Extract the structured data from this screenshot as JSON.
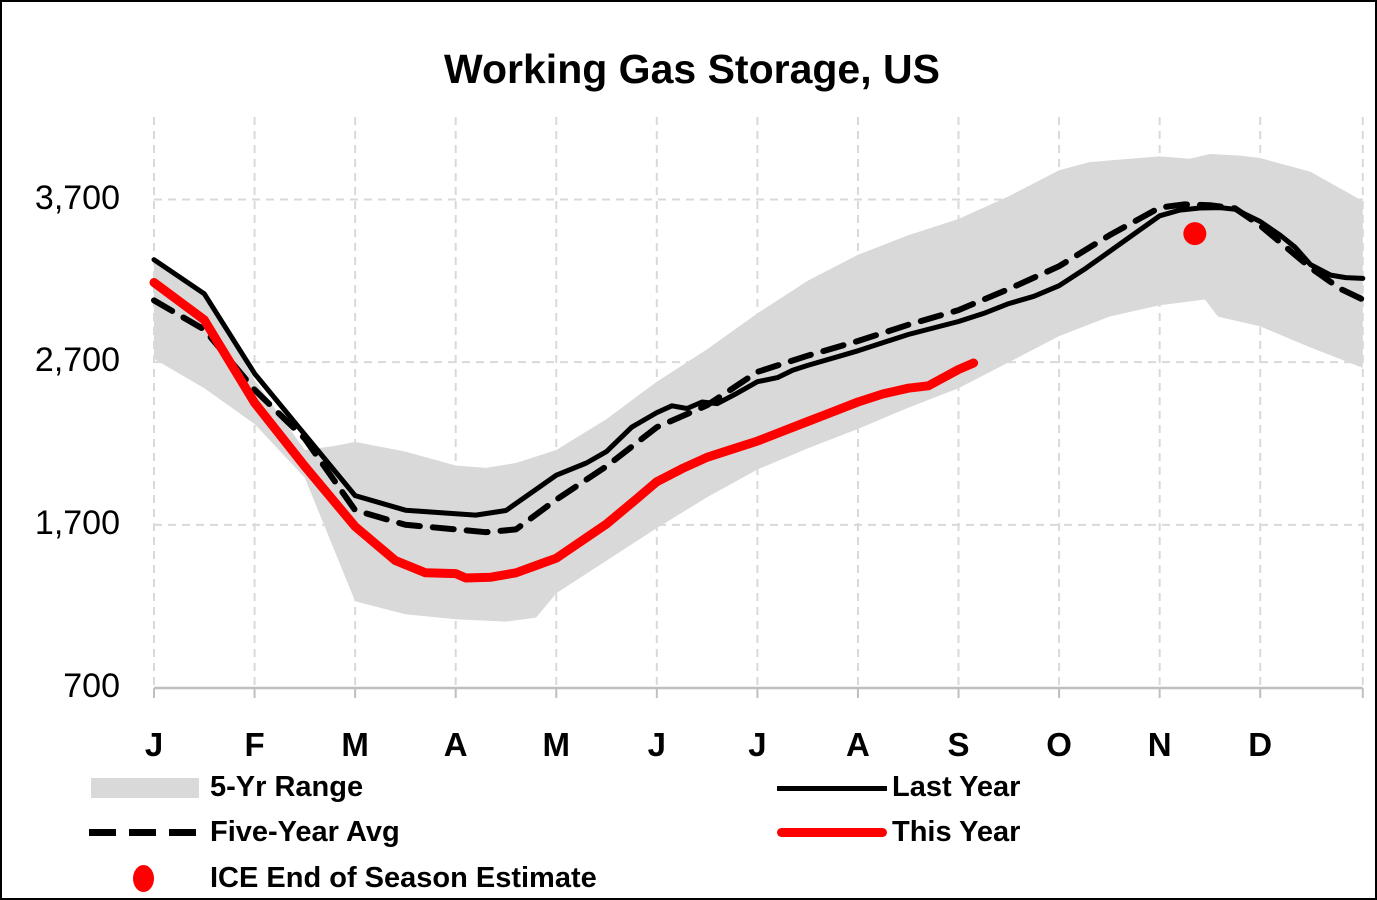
{
  "title": "Working Gas Storage, US",
  "colors": {
    "band": "#D9D9D9",
    "grid": "#D9D9D9",
    "axis": "#BFBFBF",
    "last_year": "#000000",
    "five_year_avg": "#000000",
    "this_year": "#FF0000",
    "ice_dot": "#FF0000",
    "text": "#000000"
  },
  "legend": {
    "items": [
      {
        "label": "5-Yr Range",
        "swatch": "gray-band-swatch"
      },
      {
        "label": "Five-Year Avg",
        "swatch": "black-dashed-swatch"
      },
      {
        "label": "ICE End of Season Estimate",
        "swatch": "red-dot-swatch"
      },
      {
        "label": "Last Year",
        "swatch": "black-line-swatch"
      },
      {
        "label": "This Year",
        "swatch": "red-line-swatch"
      }
    ]
  },
  "chart_data": {
    "type": "line",
    "title": "Working Gas Storage, US",
    "xlabel": "",
    "ylabel": "",
    "grid": true,
    "x_axis": {
      "unit": "months",
      "labels": [
        "J",
        "F",
        "M",
        "A",
        "M",
        "J",
        "J",
        "A",
        "S",
        "O",
        "N",
        "D"
      ],
      "range": [
        0,
        12.02
      ]
    },
    "y_axis": {
      "ticks": [
        {
          "label": "3,700",
          "value": 3700
        },
        {
          "label": "2,700",
          "value": 2700
        },
        {
          "label": "1,700",
          "value": 1700
        },
        {
          "label": "700",
          "value": 700
        }
      ],
      "range": [
        700,
        4050
      ]
    },
    "series": [
      {
        "name": "5-Yr Range",
        "type": "band",
        "color": "#D9D9D9",
        "top": [
          [
            0,
            3340
          ],
          [
            0.5,
            3130
          ],
          [
            1,
            2590
          ],
          [
            1.5,
            2160
          ],
          [
            1.8,
            2185
          ],
          [
            2,
            2210
          ],
          [
            2.5,
            2150
          ],
          [
            3,
            2065
          ],
          [
            3.3,
            2050
          ],
          [
            3.6,
            2080
          ],
          [
            4,
            2160
          ],
          [
            4.5,
            2350
          ],
          [
            5,
            2580
          ],
          [
            5.5,
            2780
          ],
          [
            6,
            3000
          ],
          [
            6.5,
            3200
          ],
          [
            7,
            3360
          ],
          [
            7.5,
            3480
          ],
          [
            8,
            3580
          ],
          [
            8.5,
            3720
          ],
          [
            9,
            3880
          ],
          [
            9.3,
            3930
          ],
          [
            9.6,
            3945
          ],
          [
            10,
            3965
          ],
          [
            10.3,
            3950
          ],
          [
            10.5,
            3980
          ],
          [
            10.8,
            3970
          ],
          [
            11,
            3955
          ],
          [
            11.5,
            3870
          ],
          [
            12.02,
            3690
          ]
        ],
        "bottom": [
          [
            0,
            2720
          ],
          [
            0.5,
            2540
          ],
          [
            1,
            2320
          ],
          [
            1.5,
            1990
          ],
          [
            2,
            1230
          ],
          [
            2.5,
            1150
          ],
          [
            3,
            1120
          ],
          [
            3.5,
            1105
          ],
          [
            3.8,
            1130
          ],
          [
            4,
            1280
          ],
          [
            4.5,
            1480
          ],
          [
            5,
            1680
          ],
          [
            5.5,
            1870
          ],
          [
            6,
            2040
          ],
          [
            6.5,
            2170
          ],
          [
            7,
            2290
          ],
          [
            7.5,
            2420
          ],
          [
            8,
            2540
          ],
          [
            8.5,
            2700
          ],
          [
            9,
            2860
          ],
          [
            9.5,
            2980
          ],
          [
            10,
            3050
          ],
          [
            10.45,
            3085
          ],
          [
            10.58,
            2980
          ],
          [
            11,
            2920
          ],
          [
            11.5,
            2790
          ],
          [
            12.02,
            2665
          ]
        ]
      },
      {
        "name": "Last Year",
        "type": "line",
        "style": "solid",
        "color": "#000000",
        "points": [
          [
            0,
            3330
          ],
          [
            0.5,
            3120
          ],
          [
            1,
            2630
          ],
          [
            1.5,
            2255
          ],
          [
            2,
            1880
          ],
          [
            2.5,
            1790
          ],
          [
            3,
            1768
          ],
          [
            3.2,
            1760
          ],
          [
            3.5,
            1788
          ],
          [
            4,
            2005
          ],
          [
            4.3,
            2080
          ],
          [
            4.5,
            2150
          ],
          [
            4.75,
            2300
          ],
          [
            5,
            2390
          ],
          [
            5.15,
            2432
          ],
          [
            5.3,
            2415
          ],
          [
            5.45,
            2455
          ],
          [
            5.6,
            2445
          ],
          [
            5.8,
            2510
          ],
          [
            6,
            2580
          ],
          [
            6.2,
            2605
          ],
          [
            6.35,
            2650
          ],
          [
            6.5,
            2680
          ],
          [
            7,
            2770
          ],
          [
            7.5,
            2870
          ],
          [
            8,
            2950
          ],
          [
            8.25,
            3000
          ],
          [
            8.5,
            3060
          ],
          [
            8.75,
            3105
          ],
          [
            9,
            3170
          ],
          [
            9.25,
            3270
          ],
          [
            9.5,
            3380
          ],
          [
            9.75,
            3490
          ],
          [
            10,
            3600
          ],
          [
            10.2,
            3635
          ],
          [
            10.4,
            3648
          ],
          [
            10.6,
            3650
          ],
          [
            10.75,
            3640
          ],
          [
            11,
            3565
          ],
          [
            11.2,
            3480
          ],
          [
            11.35,
            3405
          ],
          [
            11.5,
            3300
          ],
          [
            11.7,
            3235
          ],
          [
            11.85,
            3220
          ],
          [
            12.02,
            3215
          ]
        ]
      },
      {
        "name": "Five-Year Avg",
        "type": "line",
        "style": "dashed",
        "color": "#000000",
        "points": [
          [
            0,
            3080
          ],
          [
            0.5,
            2900
          ],
          [
            1,
            2530
          ],
          [
            1.5,
            2230
          ],
          [
            2,
            1790
          ],
          [
            2.5,
            1700
          ],
          [
            3,
            1672
          ],
          [
            3.3,
            1655
          ],
          [
            3.6,
            1672
          ],
          [
            4,
            1855
          ],
          [
            4.5,
            2060
          ],
          [
            5,
            2300
          ],
          [
            5.5,
            2435
          ],
          [
            6,
            2640
          ],
          [
            6.5,
            2740
          ],
          [
            7,
            2830
          ],
          [
            7.5,
            2930
          ],
          [
            8,
            3020
          ],
          [
            8.5,
            3150
          ],
          [
            9,
            3290
          ],
          [
            9.5,
            3480
          ],
          [
            10,
            3650
          ],
          [
            10.25,
            3670
          ],
          [
            10.5,
            3665
          ],
          [
            10.75,
            3645
          ],
          [
            11,
            3540
          ],
          [
            11.5,
            3280
          ],
          [
            11.8,
            3150
          ],
          [
            12.02,
            3085
          ]
        ]
      },
      {
        "name": "This Year",
        "type": "line",
        "style": "solid",
        "color": "#FF0000",
        "points": [
          [
            0,
            3190
          ],
          [
            0.5,
            2960
          ],
          [
            1,
            2450
          ],
          [
            1.5,
            2060
          ],
          [
            2,
            1690
          ],
          [
            2.4,
            1480
          ],
          [
            2.7,
            1405
          ],
          [
            3,
            1400
          ],
          [
            3.1,
            1373
          ],
          [
            3.35,
            1378
          ],
          [
            3.6,
            1405
          ],
          [
            3.8,
            1450
          ],
          [
            4,
            1495
          ],
          [
            4.5,
            1705
          ],
          [
            4.8,
            1860
          ],
          [
            5,
            1965
          ],
          [
            5.25,
            2045
          ],
          [
            5.5,
            2115
          ],
          [
            5.75,
            2165
          ],
          [
            6,
            2215
          ],
          [
            6.25,
            2275
          ],
          [
            6.5,
            2335
          ],
          [
            6.75,
            2395
          ],
          [
            7,
            2455
          ],
          [
            7.25,
            2505
          ],
          [
            7.5,
            2540
          ],
          [
            7.7,
            2555
          ],
          [
            8,
            2655
          ],
          [
            8.15,
            2695
          ]
        ]
      },
      {
        "name": "ICE End of Season Estimate",
        "type": "point",
        "color": "#FF0000",
        "points": [
          [
            10.35,
            3490
          ]
        ]
      }
    ],
    "legend_position": "bottom"
  }
}
